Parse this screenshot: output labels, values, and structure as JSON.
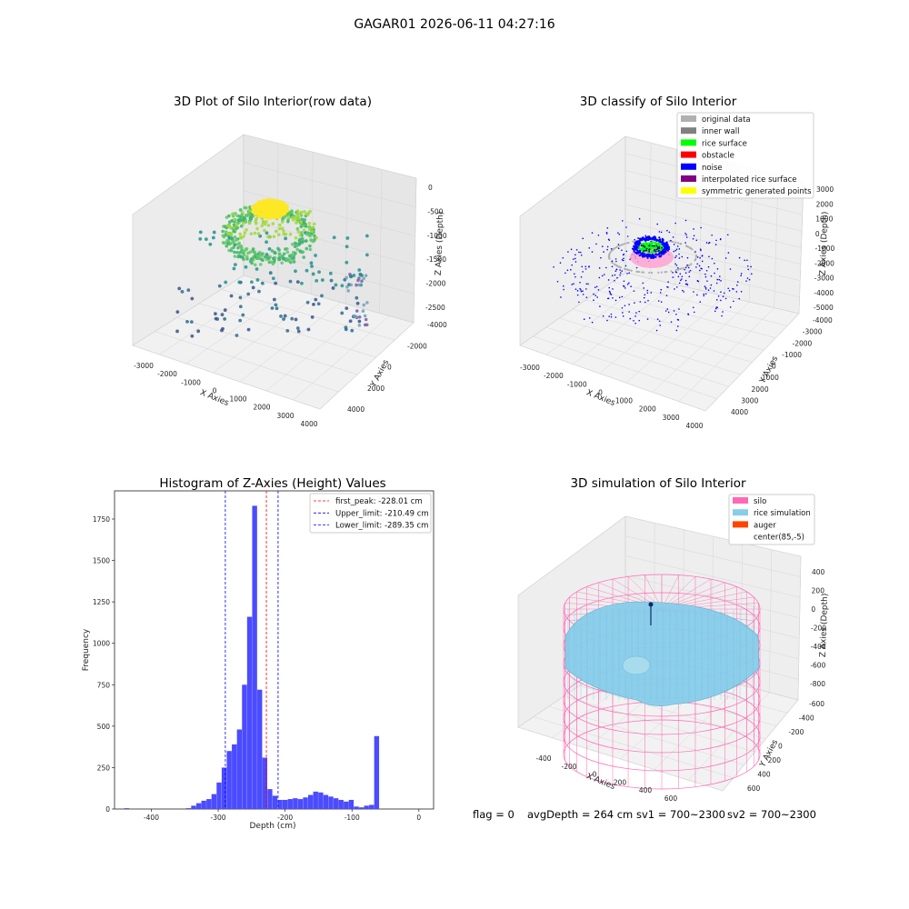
{
  "figure_title": "GAGAR01 2026-06-11 04:27:16",
  "status_line": {
    "flag": "flag = 0",
    "avg_depth": "avgDepth = 264 cm",
    "sv1": "sv1 = 700~2300",
    "sv2": "sv2 = 700~2300"
  },
  "colors": {
    "original": "#b0b0b0",
    "inner_wall": "#808080",
    "rice_surface": "#00ff00",
    "obstacle": "#ff0000",
    "noise": "#0000ff",
    "interp": "#800080",
    "symmetric": "#ffff00",
    "silo": "#ff69b4",
    "rice_sim": "#87ceeb",
    "auger": "#ff4500",
    "hist": "#4b4bff"
  },
  "chart_data": [
    {
      "type": "scatter",
      "title": "3D Plot of Silo Interior(row data)",
      "xlabel": "X Axies",
      "ylabel": "Y Axies",
      "zlabel": "Z Axies (Depth)",
      "x_ticks": [
        "-3000",
        "-2000",
        "-1000",
        "0",
        "1000",
        "2000",
        "3000",
        "4000"
      ],
      "y_ticks": [
        "-4000",
        "-2000",
        "0",
        "2000",
        "4000"
      ],
      "z_ticks": [
        "0",
        "-500",
        "-1000",
        "-1500",
        "-2000",
        "-2500"
      ],
      "grid": true
    },
    {
      "type": "scatter",
      "title": "3D classify of Silo Interior",
      "xlabel": "X Axies",
      "ylabel": "Y Axies",
      "zlabel": "Z Axies (Depth)",
      "x_ticks": [
        "-3000",
        "-2000",
        "-1000",
        "0",
        "1000",
        "2000",
        "3000",
        "4000"
      ],
      "y_ticks": [
        "-4000",
        "-3000",
        "-2000",
        "-1000",
        "0",
        "1000",
        "2000",
        "3000",
        "4000"
      ],
      "z_ticks": [
        "3000",
        "2000",
        "1000",
        "0",
        "-1000",
        "-2000",
        "-3000",
        "-4000",
        "-5000"
      ],
      "legend": [
        "original data",
        "inner wall",
        "rice surface",
        "obstacle",
        "noise",
        "interpolated rice surface",
        "symmetric generated points"
      ],
      "legend_position": "top-right",
      "grid": true
    },
    {
      "type": "bar",
      "title": "Histogram of Z-Axies (Height) Values",
      "xlabel": "Depth (cm)",
      "ylabel": "Frequency",
      "xlim": [
        -455,
        22
      ],
      "ylim": [
        0,
        1920
      ],
      "x_ticks": [
        -400,
        -300,
        -200,
        -100,
        0
      ],
      "y_ticks": [
        0,
        250,
        500,
        750,
        1000,
        1250,
        1500,
        1750
      ],
      "bin_width": 7.6,
      "bins_left": [
        -440.5,
        -348.0,
        -340.4,
        -332.8,
        -325.2,
        -317.6,
        -310.0,
        -302.4,
        -294.8,
        -287.2,
        -279.6,
        -272.0,
        -264.4,
        -256.8,
        -249.2,
        -241.6,
        -234.0,
        -226.4,
        -218.8,
        -211.2,
        -203.6,
        -196.0,
        -188.4,
        -180.8,
        -173.2,
        -165.6,
        -158.0,
        -150.4,
        -142.8,
        -135.2,
        -127.6,
        -120.0,
        -112.4,
        -104.8,
        -97.2,
        -89.6,
        -82.0,
        -74.4,
        -66.8,
        -59.2,
        -51.6,
        -44.0,
        -36.4,
        -28.8,
        -21.2,
        -13.6,
        -6.0
      ],
      "values": [
        5,
        5,
        20,
        35,
        50,
        60,
        90,
        160,
        250,
        350,
        390,
        480,
        750,
        1160,
        1830,
        720,
        310,
        120,
        80,
        55,
        55,
        60,
        65,
        60,
        70,
        85,
        105,
        100,
        85,
        75,
        65,
        55,
        45,
        55,
        15,
        10,
        20,
        25,
        440,
        0,
        0,
        0,
        0,
        0,
        0,
        0,
        0
      ],
      "vlines": [
        {
          "label": "first_peak: -228.01 cm",
          "x": -228.01,
          "color": "#ff0000"
        },
        {
          "label": "Upper_limit: -210.49 cm",
          "x": -210.49,
          "color": "#0000ff"
        },
        {
          "label": "Lower_limit: -289.35 cm",
          "x": -289.35,
          "color": "#0000ff"
        }
      ],
      "legend_position": "top-right"
    },
    {
      "type": "surface",
      "title": "3D simulation of Silo Interior",
      "xlabel": "X Axies",
      "ylabel": "Y Axies",
      "zlabel": "Z Axies (Depth)",
      "x_ticks": [
        "-400",
        "-200",
        "0",
        "200",
        "400",
        "600"
      ],
      "y_ticks": [
        "-600",
        "-400",
        "-200",
        "0",
        "200",
        "400",
        "600"
      ],
      "z_ticks": [
        "400",
        "200",
        "0",
        "-200",
        "-400",
        "-600",
        "-800"
      ],
      "legend": [
        "silo",
        "rice simulation",
        "auger",
        "center(85,-5)"
      ],
      "legend_position": "top-right",
      "grid": true
    }
  ]
}
